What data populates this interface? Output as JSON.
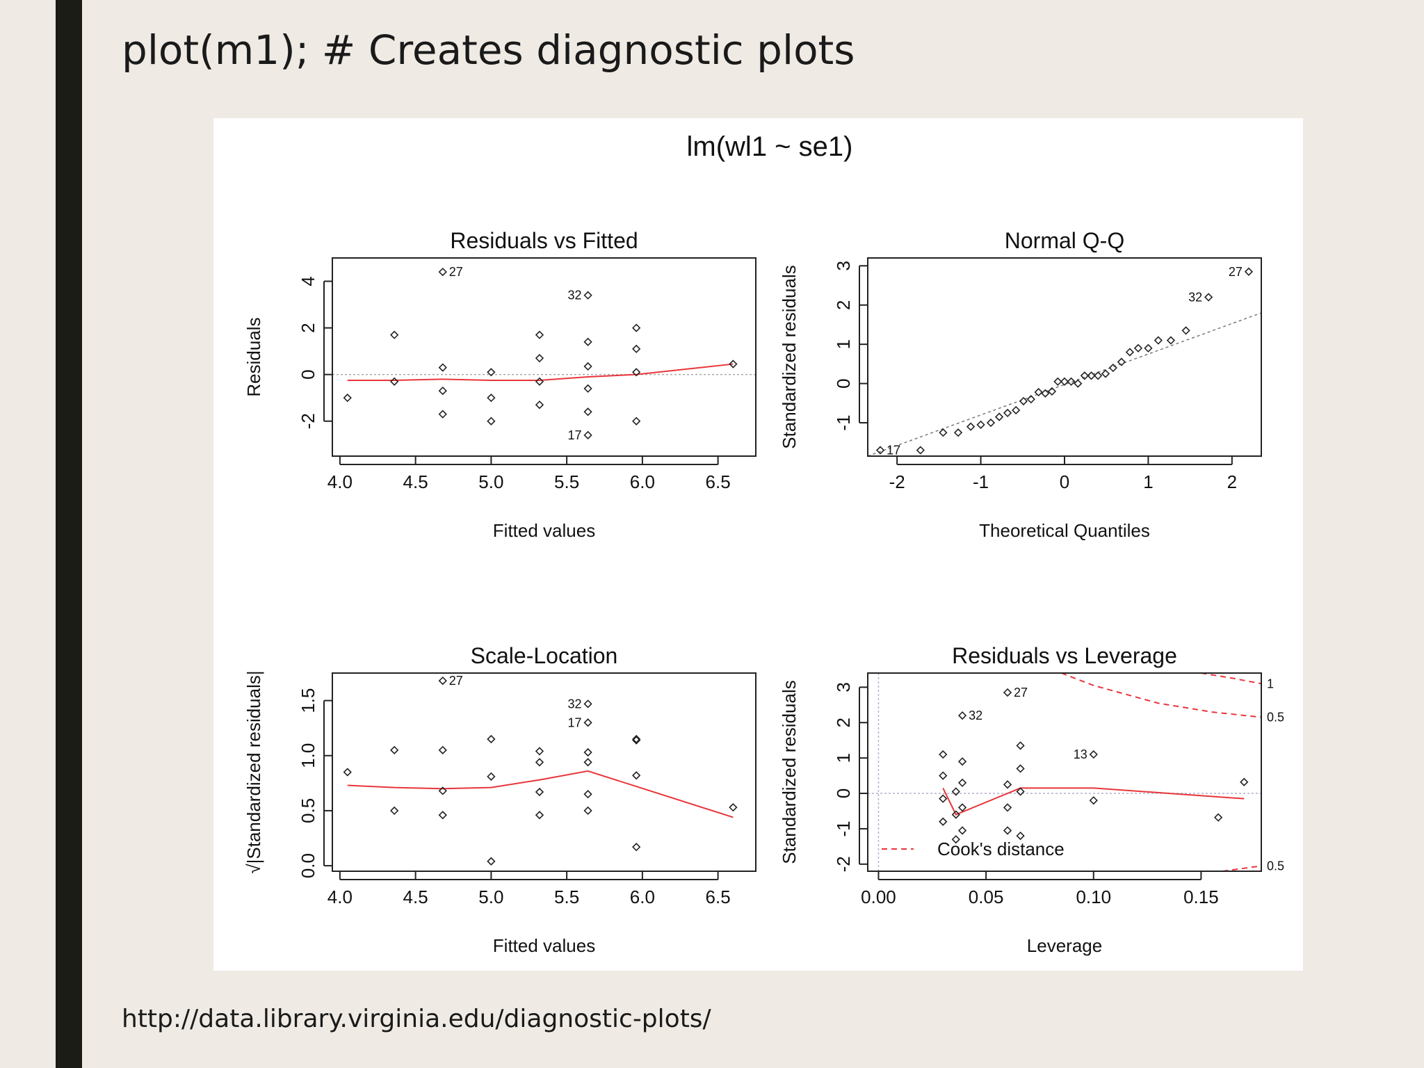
{
  "slide": {
    "title": "plot(m1); # Creates diagnostic plots",
    "source_url": "http://data.library.virginia.edu/diagnostic-plots/"
  },
  "figure": {
    "title": "lm(wl1 ~ se1)"
  },
  "colors": {
    "background": "#efebe4",
    "sidebar": "#1c1c17",
    "smoother": "#e8353a",
    "reference": "#a9a9a9"
  },
  "chart_data": [
    {
      "type": "scatter",
      "title": "Residuals vs Fitted",
      "xlabel": "Fitted values",
      "ylabel": "Residuals",
      "xlim": [
        3.95,
        6.75
      ],
      "ylim": [
        -3.5,
        5.0
      ],
      "xticks": [
        "4.0",
        "4.5",
        "5.0",
        "5.5",
        "6.0",
        "6.5"
      ],
      "yticks": [
        "-2",
        "0",
        "2",
        "4"
      ],
      "points": [
        [
          4.05,
          -1.0
        ],
        [
          4.36,
          1.7
        ],
        [
          4.36,
          -0.3
        ],
        [
          4.68,
          4.4
        ],
        [
          4.68,
          0.3
        ],
        [
          4.68,
          -0.7
        ],
        [
          4.68,
          -1.7
        ],
        [
          5.0,
          0.1
        ],
        [
          5.0,
          -1.0
        ],
        [
          5.0,
          -2.0
        ],
        [
          5.32,
          1.7
        ],
        [
          5.32,
          0.7
        ],
        [
          5.32,
          -0.3
        ],
        [
          5.32,
          -1.3
        ],
        [
          5.64,
          3.4
        ],
        [
          5.64,
          1.4
        ],
        [
          5.64,
          0.35
        ],
        [
          5.64,
          -0.6
        ],
        [
          5.64,
          -1.6
        ],
        [
          5.64,
          -2.6
        ],
        [
          5.96,
          2.0
        ],
        [
          5.96,
          1.1
        ],
        [
          5.96,
          0.1
        ],
        [
          5.96,
          -2.0
        ],
        [
          6.6,
          0.45
        ]
      ],
      "labels": [
        {
          "text": "27",
          "x": 4.68,
          "y": 4.4,
          "side": "right"
        },
        {
          "text": "32",
          "x": 5.64,
          "y": 3.4,
          "side": "left"
        },
        {
          "text": "17",
          "x": 5.64,
          "y": -2.6,
          "side": "left"
        }
      ],
      "smoother": [
        [
          4.05,
          -0.25
        ],
        [
          4.36,
          -0.25
        ],
        [
          4.68,
          -0.2
        ],
        [
          5.0,
          -0.25
        ],
        [
          5.32,
          -0.25
        ],
        [
          5.64,
          -0.1
        ],
        [
          5.96,
          0.0
        ],
        [
          6.6,
          0.45
        ]
      ],
      "hline": 0
    },
    {
      "type": "scatter",
      "title": "Normal Q-Q",
      "xlabel": "Theoretical Quantiles",
      "ylabel": "Standardized residuals",
      "xlim": [
        -2.35,
        2.35
      ],
      "ylim": [
        -1.85,
        3.2
      ],
      "xticks": [
        "-2",
        "-1",
        "0",
        "1",
        "2"
      ],
      "yticks": [
        "-1",
        "0",
        "1",
        "2",
        "3"
      ],
      "points": [
        [
          -2.2,
          -1.7
        ],
        [
          -1.72,
          -1.7
        ],
        [
          -1.45,
          -1.25
        ],
        [
          -1.27,
          -1.25
        ],
        [
          -1.12,
          -1.1
        ],
        [
          -1.0,
          -1.05
        ],
        [
          -0.88,
          -1.0
        ],
        [
          -0.78,
          -0.85
        ],
        [
          -0.68,
          -0.75
        ],
        [
          -0.58,
          -0.68
        ],
        [
          -0.49,
          -0.45
        ],
        [
          -0.4,
          -0.4
        ],
        [
          -0.31,
          -0.22
        ],
        [
          -0.23,
          -0.25
        ],
        [
          -0.15,
          -0.2
        ],
        [
          -0.08,
          0.05
        ],
        [
          0.0,
          0.05
        ],
        [
          0.08,
          0.05
        ],
        [
          0.16,
          0.0
        ],
        [
          0.24,
          0.2
        ],
        [
          0.32,
          0.2
        ],
        [
          0.4,
          0.2
        ],
        [
          0.49,
          0.25
        ],
        [
          0.58,
          0.4
        ],
        [
          0.68,
          0.55
        ],
        [
          0.78,
          0.8
        ],
        [
          0.88,
          0.9
        ],
        [
          1.0,
          0.9
        ],
        [
          1.12,
          1.1
        ],
        [
          1.27,
          1.1
        ],
        [
          1.45,
          1.35
        ],
        [
          1.72,
          2.2
        ],
        [
          2.2,
          2.85
        ]
      ],
      "labels": [
        {
          "text": "27",
          "x": 2.2,
          "y": 2.85,
          "side": "left"
        },
        {
          "text": "32",
          "x": 1.72,
          "y": 2.2,
          "side": "left"
        },
        {
          "text": "17",
          "x": -2.2,
          "y": -1.7,
          "side": "right"
        }
      ],
      "refline": [
        [
          -2.35,
          -1.85
        ],
        [
          2.35,
          1.8
        ]
      ]
    },
    {
      "type": "scatter",
      "title": "Scale-Location",
      "xlabel": "Fitted values",
      "ylabel": "√|Standardized residuals|",
      "xlim": [
        3.95,
        6.75
      ],
      "ylim": [
        -0.05,
        1.75
      ],
      "xticks": [
        "4.0",
        "4.5",
        "5.0",
        "5.5",
        "6.0",
        "6.5"
      ],
      "yticks": [
        "0.0",
        "0.5",
        "1.0",
        "1.5"
      ],
      "points": [
        [
          4.05,
          0.85
        ],
        [
          4.36,
          1.05
        ],
        [
          4.36,
          0.5
        ],
        [
          4.68,
          1.68
        ],
        [
          4.68,
          1.05
        ],
        [
          4.68,
          0.68
        ],
        [
          4.68,
          0.46
        ],
        [
          5.0,
          1.15
        ],
        [
          5.0,
          0.81
        ],
        [
          5.0,
          0.04
        ],
        [
          5.32,
          1.04
        ],
        [
          5.32,
          0.94
        ],
        [
          5.32,
          0.67
        ],
        [
          5.32,
          0.46
        ],
        [
          5.64,
          1.47
        ],
        [
          5.64,
          1.3
        ],
        [
          5.64,
          1.03
        ],
        [
          5.64,
          0.94
        ],
        [
          5.64,
          0.65
        ],
        [
          5.64,
          0.5
        ],
        [
          5.96,
          1.14
        ],
        [
          5.96,
          1.15
        ],
        [
          5.96,
          0.82
        ],
        [
          5.96,
          0.17
        ],
        [
          6.6,
          0.53
        ]
      ],
      "labels": [
        {
          "text": "27",
          "x": 4.68,
          "y": 1.68,
          "side": "right"
        },
        {
          "text": "32",
          "x": 5.64,
          "y": 1.47,
          "side": "left"
        },
        {
          "text": "17",
          "x": 5.64,
          "y": 1.3,
          "side": "left"
        }
      ],
      "smoother": [
        [
          4.05,
          0.73
        ],
        [
          4.36,
          0.71
        ],
        [
          4.68,
          0.7
        ],
        [
          5.0,
          0.71
        ],
        [
          5.32,
          0.78
        ],
        [
          5.64,
          0.86
        ],
        [
          5.96,
          0.72
        ],
        [
          6.6,
          0.44
        ]
      ]
    },
    {
      "type": "scatter",
      "title": "Residuals vs Leverage",
      "xlabel": "Leverage",
      "ylabel": "Standardized residuals",
      "xlim": [
        -0.005,
        0.178
      ],
      "ylim": [
        -2.2,
        3.4
      ],
      "xticks": [
        "0.00",
        "0.05",
        "0.10",
        "0.15"
      ],
      "yticks": [
        "-2",
        "-1",
        "0",
        "1",
        "2",
        "3"
      ],
      "points": [
        [
          0.03,
          1.1
        ],
        [
          0.03,
          0.5
        ],
        [
          0.03,
          -0.15
        ],
        [
          0.03,
          -0.8
        ],
        [
          0.036,
          0.05
        ],
        [
          0.036,
          -0.6
        ],
        [
          0.036,
          -1.3
        ],
        [
          0.039,
          2.2
        ],
        [
          0.039,
          0.9
        ],
        [
          0.039,
          0.3
        ],
        [
          0.039,
          -0.4
        ],
        [
          0.039,
          -1.05
        ],
        [
          0.06,
          2.85
        ],
        [
          0.06,
          0.25
        ],
        [
          0.06,
          -0.4
        ],
        [
          0.06,
          -1.05
        ],
        [
          0.066,
          1.35
        ],
        [
          0.066,
          0.7
        ],
        [
          0.066,
          0.05
        ],
        [
          0.066,
          -1.2
        ],
        [
          0.1,
          1.1
        ],
        [
          0.1,
          -0.2
        ],
        [
          0.158,
          -0.68
        ],
        [
          0.17,
          0.32
        ]
      ],
      "labels": [
        {
          "text": "27",
          "x": 0.06,
          "y": 2.85,
          "side": "right"
        },
        {
          "text": "32",
          "x": 0.039,
          "y": 2.2,
          "side": "right"
        },
        {
          "text": "13",
          "x": 0.1,
          "y": 1.1,
          "side": "left"
        }
      ],
      "smoother": [
        [
          0.03,
          0.15
        ],
        [
          0.036,
          -0.6
        ],
        [
          0.066,
          0.15
        ],
        [
          0.1,
          0.15
        ],
        [
          0.17,
          -0.15
        ]
      ],
      "cooks_lines": [
        {
          "label": "1",
          "points": [
            [
              0.15,
              3.4
            ],
            [
              0.165,
              3.25
            ],
            [
              0.178,
              3.1
            ]
          ]
        },
        {
          "label": "0.5",
          "points": [
            [
              0.085,
              3.4
            ],
            [
              0.1,
              3.05
            ],
            [
              0.13,
              2.55
            ],
            [
              0.155,
              2.3
            ],
            [
              0.178,
              2.15
            ]
          ]
        },
        {
          "label": "0.5",
          "points": [
            [
              0.16,
              -2.2
            ],
            [
              0.178,
              -2.05
            ]
          ]
        }
      ],
      "legend": {
        "text": "Cook's distance",
        "position": "bottom-left"
      }
    }
  ]
}
